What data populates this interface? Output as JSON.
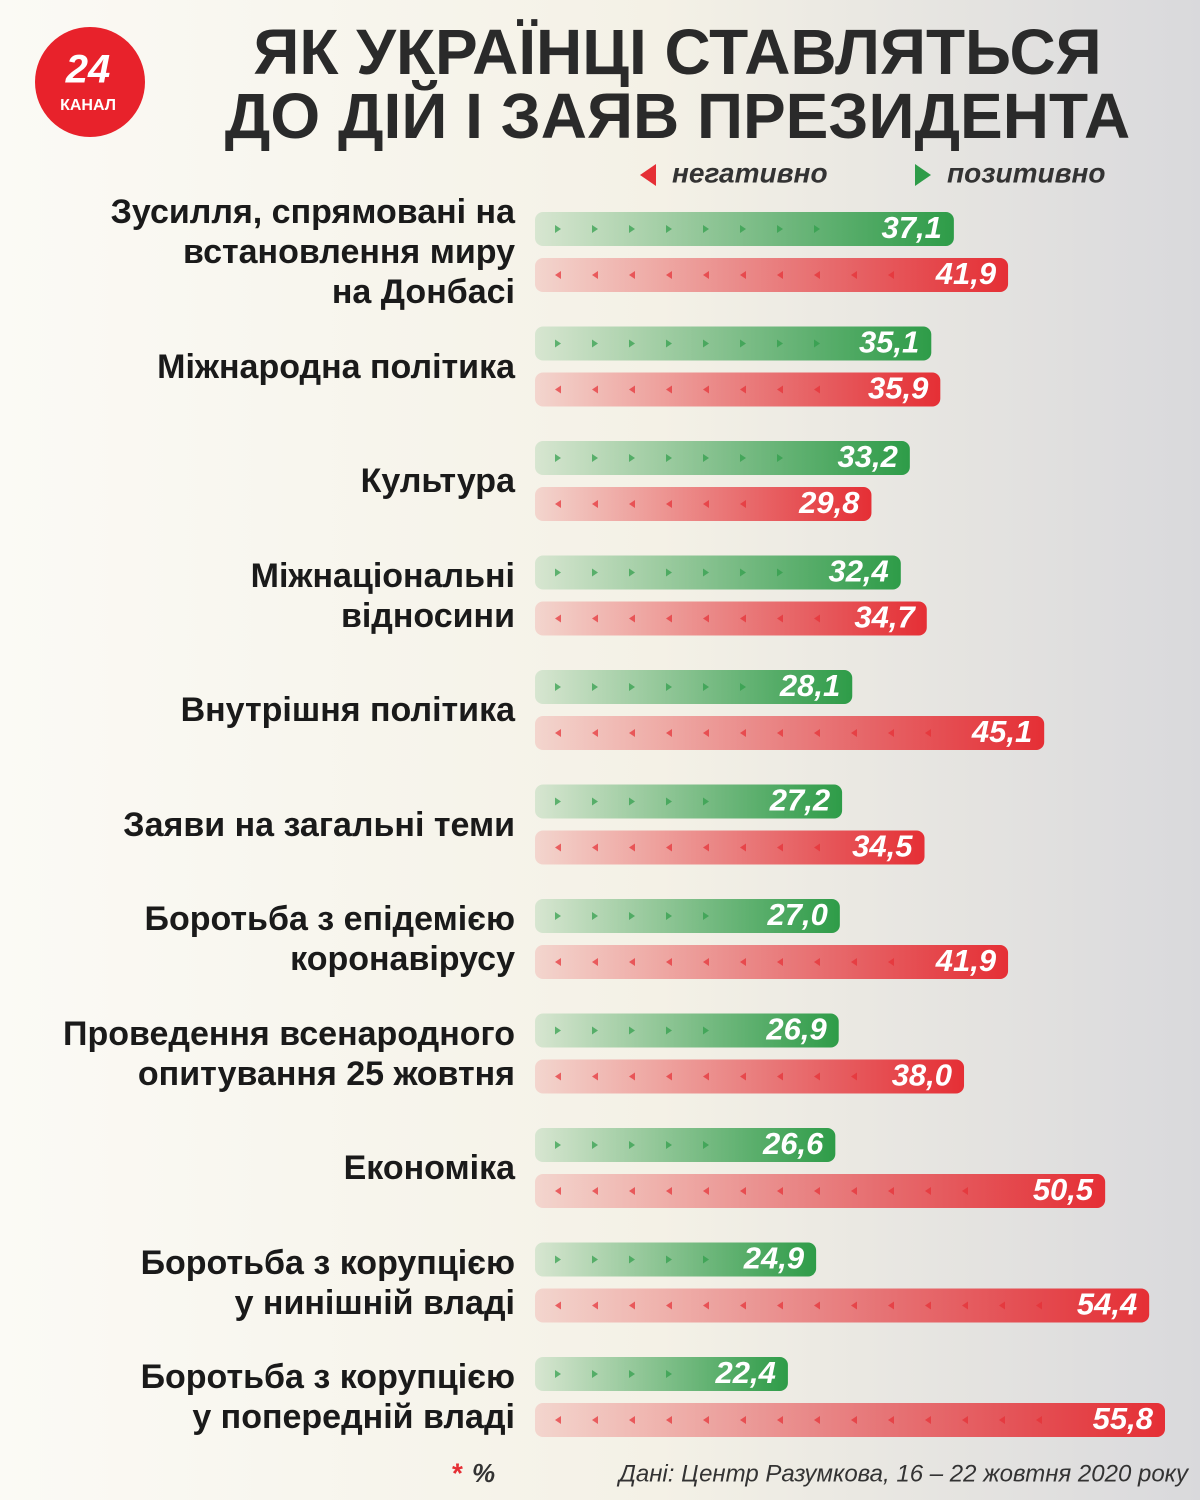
{
  "logo": {
    "number": "24",
    "name": "КАНАЛ"
  },
  "chart_data": {
    "type": "bar",
    "orientation": "horizontal",
    "title": "ЯК УКРАЇНЦІ СТАВЛЯТЬСЯ\nДО ДІЙ І ЗАЯВ ПРЕЗИДЕНТА",
    "categories": [
      "Зусилля, спрямовані на\nвстановлення миру\nна Донбасі",
      "Міжнародна політика",
      "Культура",
      "Міжнаціональні\nвідносини",
      "Внутрішня політика",
      "Заяви на загальні теми",
      "Боротьба з епідемією\nкоронавірусу",
      "Проведення всенародного\nопитування 25 жовтня",
      "Економіка",
      "Боротьба з корупцією\nу нинішній владі",
      "Боротьба з корупцією\nу попередній владі"
    ],
    "series": [
      {
        "name": "негативно",
        "color": "#e52f35",
        "values": [
          41.9,
          35.9,
          29.8,
          34.7,
          45.1,
          34.5,
          41.9,
          38.0,
          50.5,
          54.4,
          55.8
        ],
        "value_labels": [
          "41,9",
          "35,9",
          "29,8",
          "34,7",
          "45,1",
          "34,5",
          "41,9",
          "38,0",
          "50,5",
          "54,4",
          "55,8"
        ]
      },
      {
        "name": "позитивно",
        "color": "#2e9c48",
        "values": [
          37.1,
          35.1,
          33.2,
          32.4,
          28.1,
          27.2,
          27.0,
          26.9,
          26.6,
          24.9,
          22.4
        ],
        "value_labels": [
          "37,1",
          "35,1",
          "33,2",
          "32,4",
          "28,1",
          "27,2",
          "27,0",
          "26,9",
          "26,6",
          "24,9",
          "22,4"
        ]
      }
    ],
    "footnote_mark": "*",
    "unit": "%",
    "source": "Дані: Центр Разумкова, 16 – 22 жовтня 2020 року"
  }
}
